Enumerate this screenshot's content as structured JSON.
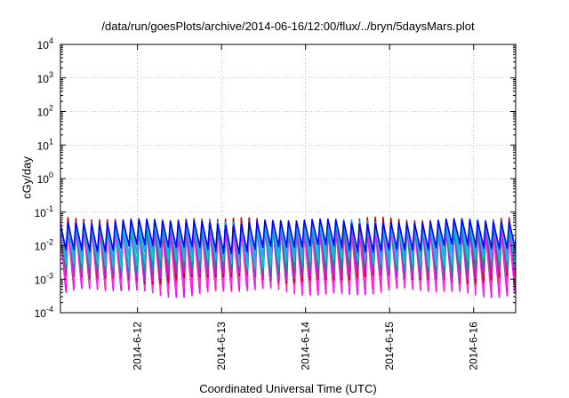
{
  "chart_data": {
    "type": "line",
    "title": "/data/run/goesPlots/archive/2014-06-16/12:00/flux/../bryn/5daysMars.plot",
    "xlabel": "Coordinated Universal Time (UTC)",
    "ylabel": "cGy/day",
    "xlim": [
      "2014-06-11T02:00",
      "2014-06-16T12:00"
    ],
    "ylim": [
      0.0001,
      10000
    ],
    "yscale": "log",
    "grid": true,
    "x_ticks": [
      "2014-6-12",
      "2014-6-13",
      "2014-6-14",
      "2014-6-15",
      "2014-6-16"
    ],
    "y_ticks": [
      {
        "base": "10",
        "exp": "-4"
      },
      {
        "base": "10",
        "exp": "-3"
      },
      {
        "base": "10",
        "exp": "-2"
      },
      {
        "base": "10",
        "exp": "-1"
      },
      {
        "base": "10",
        "exp": "0"
      },
      {
        "base": "10",
        "exp": "1"
      },
      {
        "base": "10",
        "exp": "2"
      },
      {
        "base": "10",
        "exp": "3"
      },
      {
        "base": "10",
        "exp": "4"
      }
    ],
    "sawtooth_period_hours": 2.25,
    "series": [
      {
        "color": "#ff00ff",
        "peak": 0.03,
        "trough": 0.0004
      },
      {
        "color": "#ff33cc",
        "peak": 0.035,
        "trough": 0.0006
      },
      {
        "color": "#cc0000",
        "peak": 0.055,
        "trough": 0.001
      },
      {
        "color": "#9933cc",
        "peak": 0.04,
        "trough": 0.0012
      },
      {
        "color": "#009999",
        "peak": 0.045,
        "trough": 0.002
      },
      {
        "color": "#00cccc",
        "peak": 0.045,
        "trough": 0.003
      },
      {
        "color": "#3399ff",
        "peak": 0.05,
        "trough": 0.005
      },
      {
        "color": "#0000ff",
        "peak": 0.05,
        "trough": 0.008
      }
    ]
  }
}
